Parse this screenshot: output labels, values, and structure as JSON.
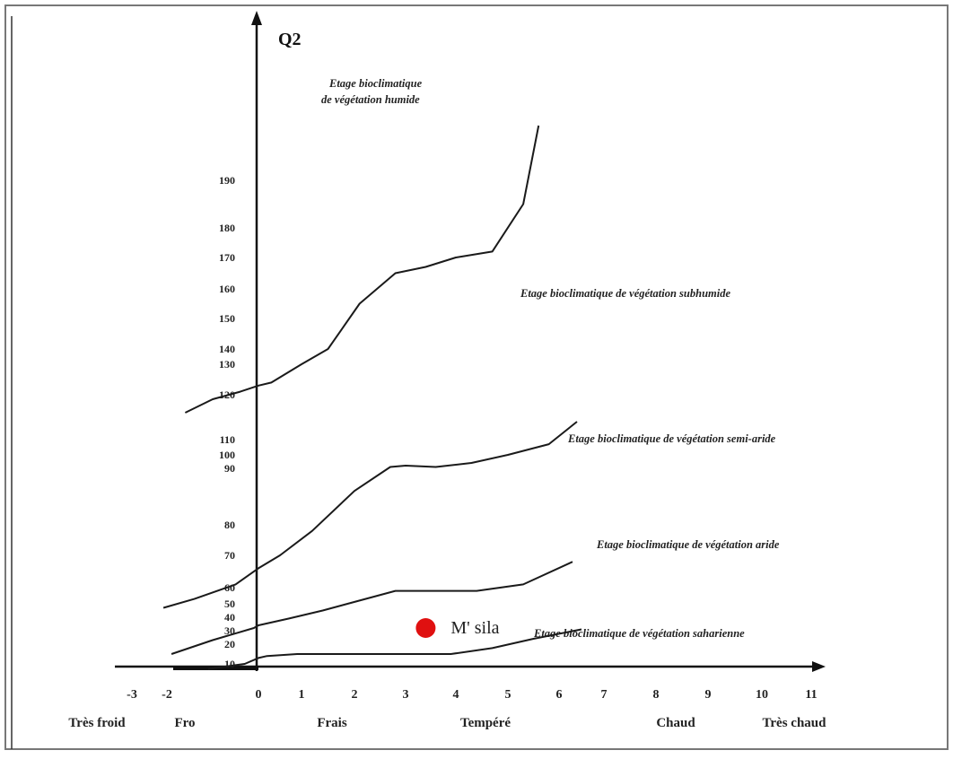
{
  "chart_data": {
    "type": "line",
    "title": "",
    "ylabel": "Q2",
    "xlabel": "",
    "x_ticks": [
      "-3",
      "-2",
      "0",
      "1",
      "2",
      "3",
      "4",
      "5",
      "6",
      "7",
      "8",
      "9",
      "10",
      "11"
    ],
    "y_ticks": [
      "10",
      "20",
      "30",
      "40",
      "50",
      "60",
      "70",
      "80",
      "90",
      "100",
      "110",
      "120",
      "130",
      "140",
      "150",
      "160",
      "170",
      "180",
      "190"
    ],
    "zones": [
      "Très froid",
      "Fro",
      "Frais",
      "Tempéré",
      "Chaud",
      "Très chaud"
    ],
    "etages": [
      [
        "Etage bioclimatique",
        "de végétation humide"
      ],
      [
        "Etage bioclimatique de végétation subhumide"
      ],
      [
        "Etage bioclimatique de végétation semi-aride"
      ],
      [
        "Etage bioclimatique de végétation aride"
      ],
      [
        "Etage bioclimatique de végétation saharienne"
      ]
    ],
    "series": [
      {
        "x": [
          -1.6,
          -1,
          -0.4,
          0,
          0.3,
          1,
          1.5,
          2.1,
          2.8,
          3.4,
          4,
          4.7,
          5.3,
          5.6
        ],
        "y": [
          116,
          119,
          121,
          123,
          124,
          130,
          140,
          155,
          165,
          167,
          170,
          172,
          185,
          205
        ]
      },
      {
        "x": [
          -2.1,
          -1.4,
          -0.5,
          0,
          0.5,
          1.2,
          2,
          2.7,
          3,
          3.6,
          4.3,
          5,
          5.8,
          6.4
        ],
        "y": [
          47,
          53,
          61,
          66,
          70,
          78,
          86,
          91,
          92,
          91,
          94,
          100,
          107,
          114
        ]
      },
      {
        "x": [
          -1.9,
          -1,
          -0.1,
          0,
          0.7,
          1.4,
          2.1,
          2.8,
          3.2,
          3.7,
          4.4,
          5.3,
          6.3
        ],
        "y": [
          15,
          23,
          32,
          34,
          39,
          45,
          52,
          58,
          58,
          58,
          58,
          61,
          68
        ]
      },
      {
        "x": [
          -1.1,
          -0.3,
          0,
          0.2,
          0.9,
          1.6,
          2.4,
          3.1,
          3.9,
          4.7,
          5.5,
          6.5
        ],
        "y": [
          3,
          10,
          13,
          14,
          15,
          15,
          15,
          15,
          15,
          18,
          24,
          31
        ]
      }
    ],
    "points": [
      {
        "name": "M' sila",
        "x": 3.4,
        "y": 32,
        "color": "#e01010"
      }
    ]
  }
}
